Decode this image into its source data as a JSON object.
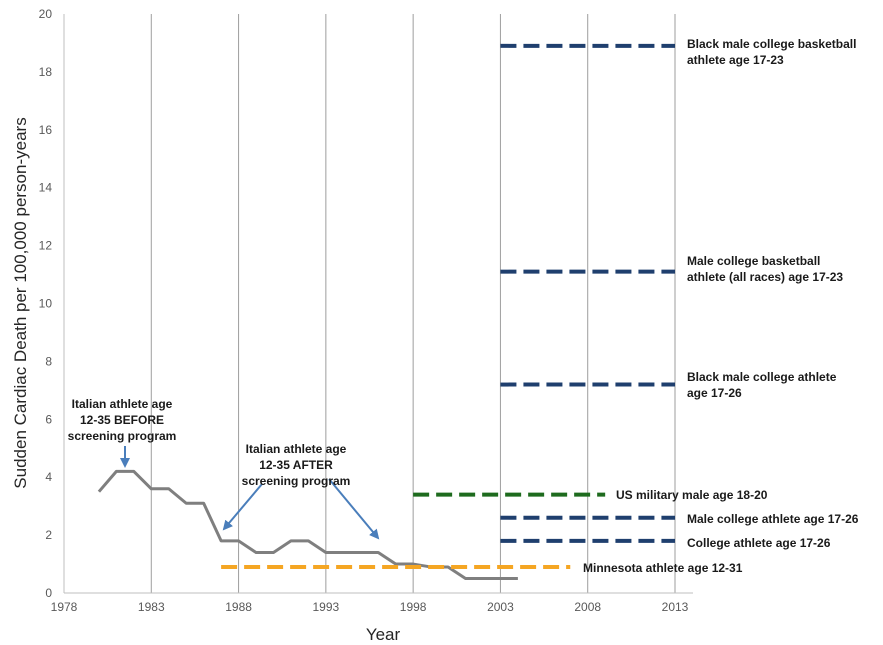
{
  "chart_data": {
    "type": "line",
    "xlabel": "Year",
    "ylabel": "Sudden Cardiac Death per 100,000 person-years",
    "xlim": [
      1978,
      2013
    ],
    "ylim": [
      0,
      20
    ],
    "x_ticks": [
      "1978",
      "1983",
      "1988",
      "1993",
      "1998",
      "2003",
      "2008",
      "2013"
    ],
    "y_ticks": [
      "0",
      "2",
      "4",
      "6",
      "8",
      "10",
      "12",
      "14",
      "16",
      "18",
      "20"
    ],
    "grid": "vertical",
    "series": [
      {
        "style": "solid",
        "color": "#7f7f7f",
        "x": [
          1980,
          1981,
          1982,
          1983,
          1984,
          1985,
          1986,
          1987,
          1988,
          1989,
          1990,
          1991,
          1992,
          1993,
          1994,
          1995,
          1996,
          1997,
          1998,
          1999,
          2000,
          2001,
          2002,
          2003,
          2004
        ],
        "y": [
          3.5,
          4.2,
          4.2,
          3.6,
          3.6,
          3.1,
          3.1,
          1.8,
          1.8,
          1.4,
          1.4,
          1.8,
          1.8,
          1.4,
          1.4,
          1.4,
          1.4,
          1.0,
          1.0,
          0.9,
          0.9,
          0.5,
          0.5,
          0.5,
          0.5
        ]
      },
      {
        "name": "Minnesota athlete age 12-31",
        "style": "dashed",
        "color": "#f5a623",
        "x": [
          1987,
          2007
        ],
        "y": [
          0.9,
          0.9
        ]
      },
      {
        "name": "US military male age 18-20",
        "style": "dashed",
        "color": "#1e6b1e",
        "x": [
          1998,
          2009
        ],
        "y": [
          3.4,
          3.4
        ]
      },
      {
        "name": "Black male college basketball athlete age 17-23",
        "style": "dashed",
        "color": "#1f3f6e",
        "x": [
          2003,
          2013
        ],
        "y": [
          18.9,
          18.9
        ]
      },
      {
        "name": "Male college basketball athlete (all races) age 17-23",
        "style": "dashed",
        "color": "#1f3f6e",
        "x": [
          2003,
          2013
        ],
        "y": [
          11.1,
          11.1
        ]
      },
      {
        "name": "Black male college athlete age 17-26",
        "style": "dashed",
        "color": "#1f3f6e",
        "x": [
          2003,
          2013
        ],
        "y": [
          7.2,
          7.2
        ]
      },
      {
        "name": "Male college athlete age 17-26",
        "style": "dashed",
        "color": "#1f3f6e",
        "x": [
          2003,
          2013
        ],
        "y": [
          2.6,
          2.6
        ]
      },
      {
        "name": "College athlete age 17-26",
        "style": "dashed",
        "color": "#1f3f6e",
        "x": [
          2003,
          2013
        ],
        "y": [
          1.8,
          1.8
        ]
      }
    ],
    "annotations": [
      {
        "lines": [
          "Black male college basketball",
          "athlete age 17-23"
        ]
      },
      {
        "lines": [
          "Male college basketball",
          "athlete (all races) age 17-23"
        ]
      },
      {
        "lines": [
          "Black male college athlete",
          "age 17-26"
        ]
      },
      {
        "lines": [
          "US military male age 18-20"
        ]
      },
      {
        "lines": [
          "Male college athlete age 17-26"
        ]
      },
      {
        "lines": [
          "College athlete age 17-26"
        ]
      },
      {
        "lines": [
          "Minnesota athlete age 12-31"
        ]
      },
      {
        "lines": [
          "Italian athlete age",
          "12-35 BEFORE",
          "screening program"
        ]
      },
      {
        "lines": [
          "Italian athlete age",
          "12-35 AFTER",
          "screening program"
        ]
      }
    ]
  }
}
